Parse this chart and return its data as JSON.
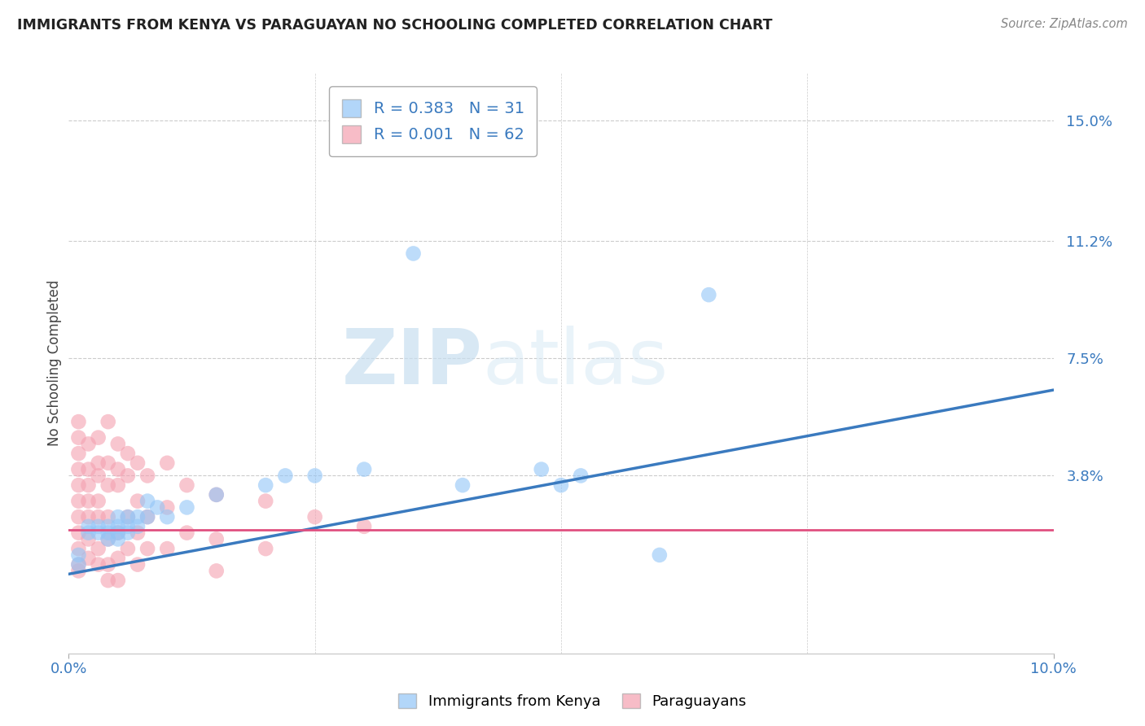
{
  "title": "IMMIGRANTS FROM KENYA VS PARAGUAYAN NO SCHOOLING COMPLETED CORRELATION CHART",
  "source": "Source: ZipAtlas.com",
  "ylabel": "No Schooling Completed",
  "ytick_vals": [
    0.0,
    0.038,
    0.075,
    0.112,
    0.15
  ],
  "ytick_labels": [
    "",
    "3.8%",
    "7.5%",
    "11.2%",
    "15.0%"
  ],
  "xlim": [
    0.0,
    0.1
  ],
  "ylim": [
    -0.018,
    0.165
  ],
  "blue_color": "#92c5f7",
  "pink_color": "#f4a0b0",
  "blue_line_color": "#3a7abf",
  "pink_line_color": "#e05080",
  "watermark_zip": "ZIP",
  "watermark_atlas": "atlas",
  "kenya_points": [
    [
      0.001,
      0.01
    ],
    [
      0.001,
      0.013
    ],
    [
      0.002,
      0.02
    ],
    [
      0.002,
      0.022
    ],
    [
      0.003,
      0.02
    ],
    [
      0.003,
      0.022
    ],
    [
      0.004,
      0.02
    ],
    [
      0.004,
      0.018
    ],
    [
      0.004,
      0.022
    ],
    [
      0.005,
      0.022
    ],
    [
      0.005,
      0.02
    ],
    [
      0.005,
      0.025
    ],
    [
      0.005,
      0.018
    ],
    [
      0.006,
      0.025
    ],
    [
      0.006,
      0.022
    ],
    [
      0.006,
      0.02
    ],
    [
      0.007,
      0.025
    ],
    [
      0.007,
      0.022
    ],
    [
      0.008,
      0.03
    ],
    [
      0.008,
      0.025
    ],
    [
      0.009,
      0.028
    ],
    [
      0.01,
      0.025
    ],
    [
      0.012,
      0.028
    ],
    [
      0.015,
      0.032
    ],
    [
      0.02,
      0.035
    ],
    [
      0.022,
      0.038
    ],
    [
      0.025,
      0.038
    ],
    [
      0.03,
      0.04
    ],
    [
      0.035,
      0.108
    ],
    [
      0.04,
      0.035
    ],
    [
      0.048,
      0.04
    ],
    [
      0.05,
      0.035
    ],
    [
      0.052,
      0.038
    ],
    [
      0.06,
      0.013
    ],
    [
      0.065,
      0.095
    ]
  ],
  "paraguayan_points": [
    [
      0.001,
      0.055
    ],
    [
      0.001,
      0.05
    ],
    [
      0.001,
      0.045
    ],
    [
      0.001,
      0.04
    ],
    [
      0.001,
      0.035
    ],
    [
      0.001,
      0.03
    ],
    [
      0.001,
      0.025
    ],
    [
      0.001,
      0.02
    ],
    [
      0.001,
      0.015
    ],
    [
      0.001,
      0.01
    ],
    [
      0.001,
      0.008
    ],
    [
      0.002,
      0.048
    ],
    [
      0.002,
      0.04
    ],
    [
      0.002,
      0.035
    ],
    [
      0.002,
      0.03
    ],
    [
      0.002,
      0.025
    ],
    [
      0.002,
      0.018
    ],
    [
      0.002,
      0.012
    ],
    [
      0.003,
      0.05
    ],
    [
      0.003,
      0.042
    ],
    [
      0.003,
      0.038
    ],
    [
      0.003,
      0.03
    ],
    [
      0.003,
      0.025
    ],
    [
      0.003,
      0.015
    ],
    [
      0.003,
      0.01
    ],
    [
      0.004,
      0.055
    ],
    [
      0.004,
      0.042
    ],
    [
      0.004,
      0.035
    ],
    [
      0.004,
      0.025
    ],
    [
      0.004,
      0.018
    ],
    [
      0.004,
      0.01
    ],
    [
      0.004,
      0.005
    ],
    [
      0.005,
      0.048
    ],
    [
      0.005,
      0.04
    ],
    [
      0.005,
      0.035
    ],
    [
      0.005,
      0.02
    ],
    [
      0.005,
      0.012
    ],
    [
      0.005,
      0.005
    ],
    [
      0.006,
      0.045
    ],
    [
      0.006,
      0.038
    ],
    [
      0.006,
      0.025
    ],
    [
      0.006,
      0.015
    ],
    [
      0.007,
      0.042
    ],
    [
      0.007,
      0.03
    ],
    [
      0.007,
      0.02
    ],
    [
      0.007,
      0.01
    ],
    [
      0.008,
      0.038
    ],
    [
      0.008,
      0.025
    ],
    [
      0.008,
      0.015
    ],
    [
      0.01,
      0.042
    ],
    [
      0.01,
      0.028
    ],
    [
      0.01,
      0.015
    ],
    [
      0.012,
      0.035
    ],
    [
      0.012,
      0.02
    ],
    [
      0.015,
      0.032
    ],
    [
      0.015,
      0.018
    ],
    [
      0.015,
      0.008
    ],
    [
      0.02,
      0.03
    ],
    [
      0.02,
      0.015
    ],
    [
      0.025,
      0.025
    ],
    [
      0.03,
      0.022
    ]
  ],
  "blue_line_x": [
    0.0,
    0.1
  ],
  "blue_line_y": [
    0.007,
    0.065
  ],
  "pink_line_x": [
    0.0,
    0.1
  ],
  "pink_line_y": [
    0.021,
    0.021
  ]
}
